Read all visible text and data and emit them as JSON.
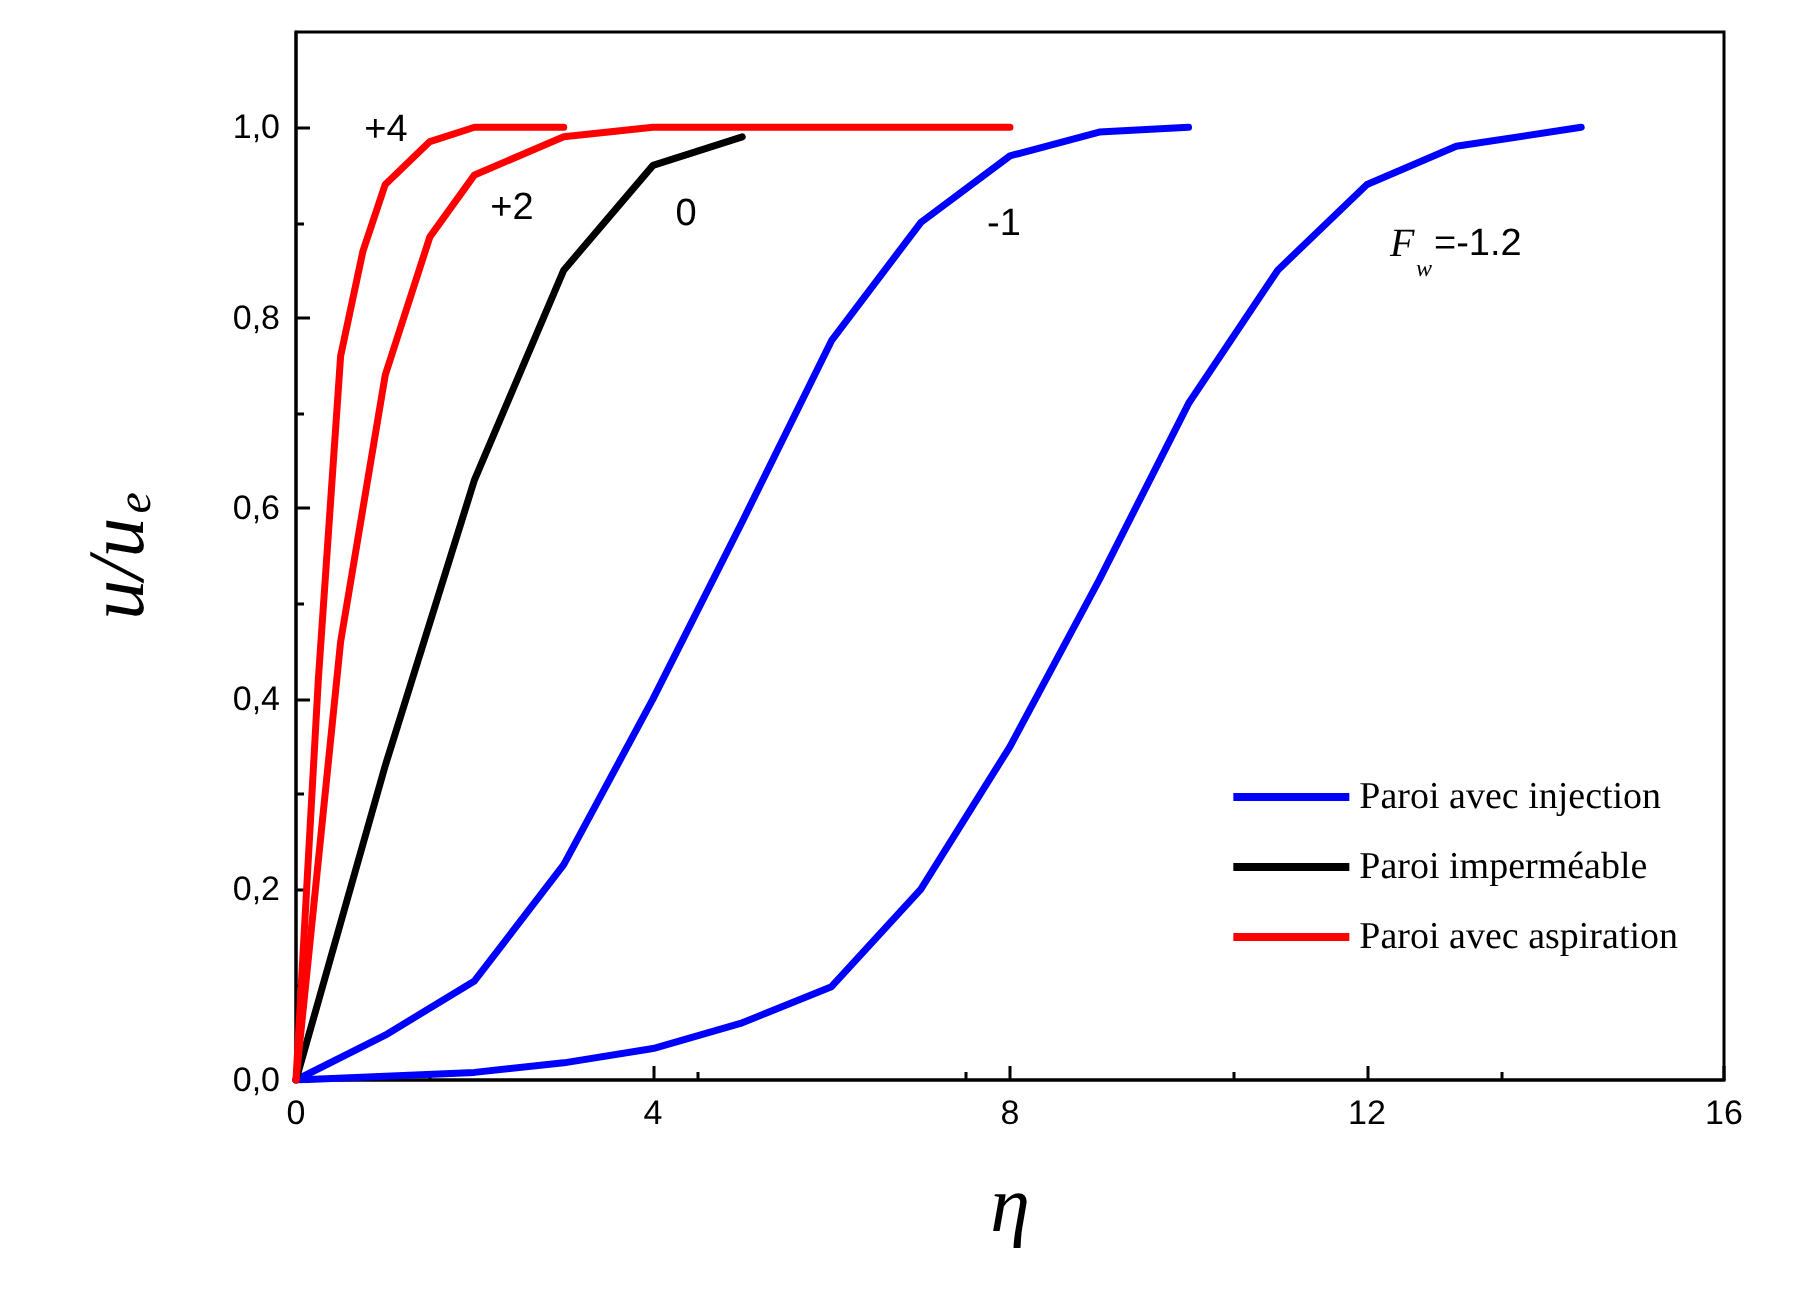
{
  "chart_data": {
    "type": "line",
    "xlabel": "η",
    "ylabel": "u/u$_{e}$",
    "xlim": [
      0,
      16
    ],
    "ylim": [
      0,
      1.1
    ],
    "xticks": [
      0,
      4,
      8,
      12,
      16
    ],
    "yticks": [
      {
        "value": 0,
        "label": "0,0"
      },
      {
        "value": 0.2,
        "label": "0,2"
      },
      {
        "value": 0.4,
        "label": "0,4"
      },
      {
        "value": 0.6,
        "label": "0,6"
      },
      {
        "value": 0.8,
        "label": "0,8"
      },
      {
        "value": 1,
        "label": "1,0"
      }
    ],
    "grid": false,
    "legend": "bottom right",
    "line_style": "solid",
    "marker": "none",
    "series": [
      {
        "name": "Paroi avec injection",
        "color": "#0000ff",
        "x": [
          0,
          1,
          2,
          3,
          4,
          5,
          6,
          7,
          8,
          9,
          10
        ],
        "values": [
          0,
          0.047,
          0.104,
          0.226,
          0.4,
          0.586,
          0.776,
          0.9,
          0.97,
          0.995,
          1
        ]
      },
      {
        "color": "#0000ff",
        "x": [
          0,
          2,
          3,
          4,
          5,
          6,
          7,
          8,
          9,
          10,
          11,
          12,
          13,
          14.4
        ],
        "values": [
          0,
          0.008,
          0.018,
          0.033,
          0.06,
          0.098,
          0.2,
          0.35,
          0.525,
          0.71,
          0.85,
          0.94,
          0.98,
          1
        ]
      },
      {
        "name": "Paroi imperméable",
        "color": "#000000",
        "x": [
          0,
          1,
          2,
          3,
          4,
          5
        ],
        "values": [
          0,
          0.33,
          0.63,
          0.85,
          0.96,
          0.99
        ]
      },
      {
        "name": "Paroi avec aspiration",
        "color": "#ff0000",
        "x": [
          0,
          0.5,
          1,
          1.5,
          2,
          3,
          4,
          8
        ],
        "values": [
          0,
          0.46,
          0.74,
          0.885,
          0.95,
          0.99,
          1,
          1
        ]
      },
      {
        "color": "#ff0000",
        "x": [
          0,
          0.25,
          0.5,
          0.75,
          1,
          1.5,
          2,
          3
        ],
        "values": [
          0,
          0.42,
          0.76,
          0.87,
          0.94,
          0.985,
          1,
          1
        ]
      }
    ],
    "annotations": [
      "+4",
      "+2",
      "0",
      "-1",
      "F$_{w}$=-1.2"
    ]
  }
}
